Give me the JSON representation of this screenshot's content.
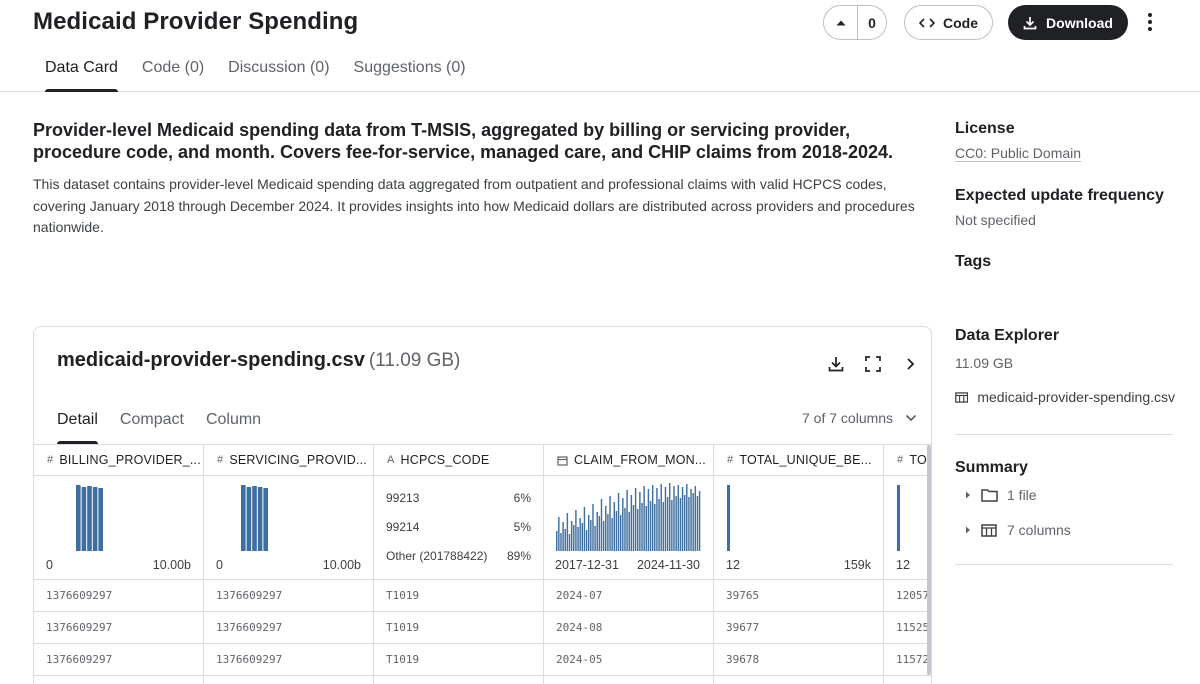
{
  "header": {
    "title": "Medicaid Provider Spending",
    "vote_count": "0",
    "code_label": "Code",
    "download_label": "Download"
  },
  "tabs": [
    {
      "label": "Data Card"
    },
    {
      "label": "Code (0)"
    },
    {
      "label": "Discussion (0)"
    },
    {
      "label": "Suggestions (0)"
    }
  ],
  "subtitle": "Provider-level Medicaid spending data from T-MSIS, aggregated by billing or servicing provider, procedure code, and month. Covers fee-for-service, managed care, and CHIP claims from 2018-2024.",
  "description": "This dataset contains provider-level Medicaid spending data aggregated from outpatient and professional claims with valid HCPCS codes, covering January 2018 through December 2024. It provides insights into how Medicaid dollars are distributed across providers and procedures nationwide.",
  "sidebar": {
    "license_label": "License",
    "license_value": "CC0: Public Domain",
    "update_label": "Expected update frequency",
    "update_value": "Not specified",
    "tags_label": "Tags",
    "explorer_label": "Data Explorer",
    "explorer_size": "11.09 GB",
    "explorer_file": "medicaid-provider-spending.csv",
    "summary_label": "Summary",
    "summary_files": "1 file",
    "summary_columns": "7 columns"
  },
  "file_card": {
    "file_name": "medicaid-provider-spending.csv",
    "file_size": "(11.09 GB)",
    "view_tabs": [
      {
        "label": "Detail"
      },
      {
        "label": "Compact"
      },
      {
        "label": "Column"
      }
    ],
    "columns_selector": "7 of 7 columns",
    "columns": [
      {
        "name": "BILLING_PROVIDER_...",
        "type_icon": "#",
        "min": "0",
        "max": "10.00b"
      },
      {
        "name": "SERVICING_PROVID...",
        "type_icon": "#",
        "min": "0",
        "max": "10.00b"
      },
      {
        "name": "HCPCS_CODE",
        "type_icon": "A"
      },
      {
        "name": "CLAIM_FROM_MON...",
        "type_icon": "calendar",
        "min": "2017-12-31",
        "max": "2024-11-30"
      },
      {
        "name": "TOTAL_UNIQUE_BE...",
        "type_icon": "#",
        "min": "12",
        "max": "159k"
      },
      {
        "name": "TOTAL_",
        "type_icon": "#",
        "min": "12"
      }
    ],
    "hcpcs_top": [
      {
        "code": "99213",
        "pct": "6%"
      },
      {
        "code": "99214",
        "pct": "5%"
      },
      {
        "code": "Other (201788422)",
        "pct": "89%"
      }
    ],
    "rows": [
      [
        "1376609297",
        "1376609297",
        "T1019",
        "2024-07",
        "39765",
        "12057"
      ],
      [
        "1376609297",
        "1376609297",
        "T1019",
        "2024-08",
        "39677",
        "11525"
      ],
      [
        "1376609297",
        "1376609297",
        "T1019",
        "2024-05",
        "39678",
        "11572"
      ]
    ]
  },
  "colors": {
    "bar": "#3e6fa0",
    "text": "#202124",
    "muted": "#5f6368",
    "border": "#dadce0"
  }
}
